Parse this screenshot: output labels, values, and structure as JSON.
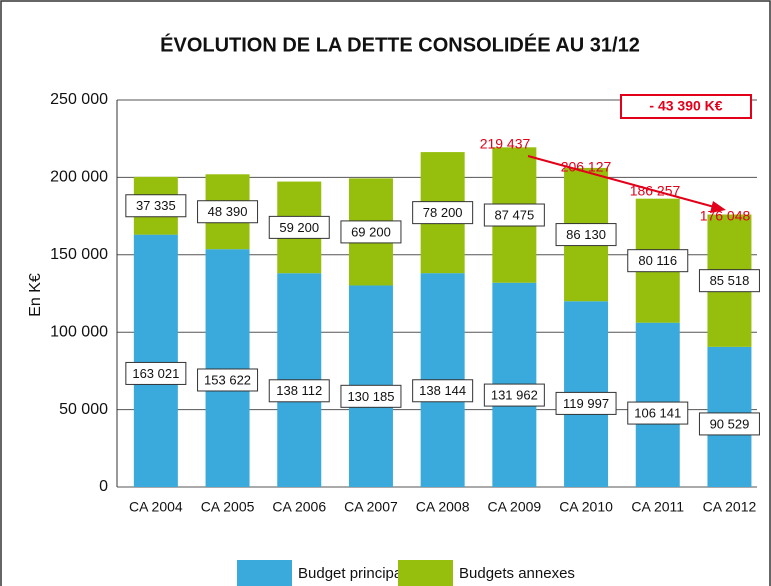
{
  "chart_data": {
    "type": "stacked-bar",
    "title": "ÉVOLUTION DE LA DETTE CONSOLIDÉE AU 31/12",
    "y_label": "En K€",
    "categories": [
      "CA 2004",
      "CA 2005",
      "CA 2006",
      "CA 2007",
      "CA 2008",
      "CA 2009",
      "CA 2010",
      "CA 2011",
      "CA 2012"
    ],
    "series": [
      {
        "name": "Budget principal",
        "color": "#3aaadc",
        "values": [
          163021,
          153622,
          138112,
          130185,
          138144,
          131962,
          119997,
          106141,
          90529
        ],
        "value_labels": [
          "163 021",
          "153 622",
          "138 112",
          "130 185",
          "138 144",
          "131 962",
          "119 997",
          "106 141",
          "90 529"
        ]
      },
      {
        "name": "Budgets annexes",
        "color": "#96be0d",
        "values": [
          37335,
          48390,
          59200,
          69200,
          78200,
          87475,
          86130,
          80116,
          85518
        ],
        "value_labels": [
          "37 335",
          "48 390",
          "59 200",
          "69 200",
          "78 200",
          "87 475",
          "86 130",
          "80 116",
          "85 518"
        ]
      }
    ],
    "annotations": [
      "219 437",
      "206 127",
      "186 257",
      "176 048"
    ],
    "change_label": "- 43 390 K€",
    "ylim": [
      0,
      250000
    ],
    "yticks": [
      0,
      {
        "value": 50000,
        "label": "50 000"
      },
      {
        "value": 100000,
        "label": "100 000"
      },
      {
        "value": 150000,
        "label": "150 000"
      },
      {
        "value": 200000,
        "label": "200 000"
      },
      {
        "value": 250000,
        "label": "250 000"
      }
    ],
    "grid": true
  }
}
